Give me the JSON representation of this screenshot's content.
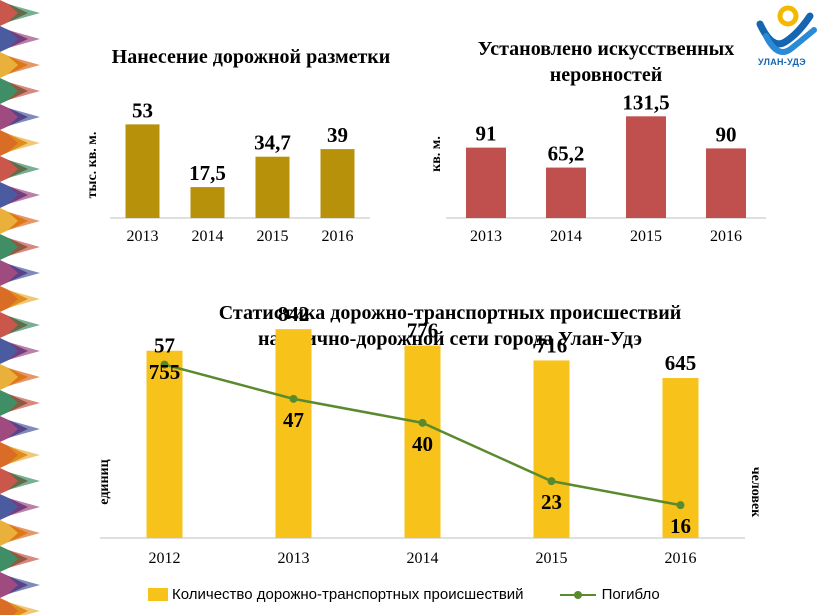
{
  "logo": {
    "text": "УЛАН-УДЭ"
  },
  "chart_data": [
    {
      "type": "bar",
      "title": "Нанесение дорожной разметки",
      "ylabel": "тыс. кв. м.",
      "categories": [
        "2013",
        "2014",
        "2015",
        "2016"
      ],
      "values": [
        53,
        17.5,
        34.7,
        39
      ],
      "value_labels": [
        "53",
        "17,5",
        "34,7",
        "39"
      ],
      "ylim": [
        0,
        60
      ],
      "color": "#b8910a"
    },
    {
      "type": "bar",
      "title": "Установлено искусственных неровностей",
      "ylabel": "кв. м.",
      "categories": [
        "2013",
        "2014",
        "2015",
        "2016"
      ],
      "values": [
        91,
        65.2,
        131.5,
        90
      ],
      "value_labels": [
        "91",
        "65,2",
        "131,5",
        "90"
      ],
      "ylim": [
        0,
        150
      ],
      "color": "#c0504d"
    },
    {
      "type": "bar+line",
      "title_lines": [
        "Статистика дорожно-транспортных происшествий",
        "на улично-дорожной сети города Улан-Удэ"
      ],
      "ylabel_left": "единиц",
      "ylabel_right": "человек",
      "categories": [
        "2012",
        "2013",
        "2014",
        "2015",
        "2016"
      ],
      "series": [
        {
          "name": "Количество дорожно-транспортных происшествий",
          "type": "bar",
          "values": [
            755,
            842,
            776,
            716,
            645
          ],
          "color": "#f7c21a",
          "ylim": [
            0,
            1000
          ]
        },
        {
          "name": "Погибло",
          "type": "line",
          "values": [
            57,
            47,
            40,
            23,
            16
          ],
          "color": "#5a8a2e",
          "ylim": [
            0,
            70
          ]
        }
      ],
      "legend": "bottom"
    }
  ]
}
